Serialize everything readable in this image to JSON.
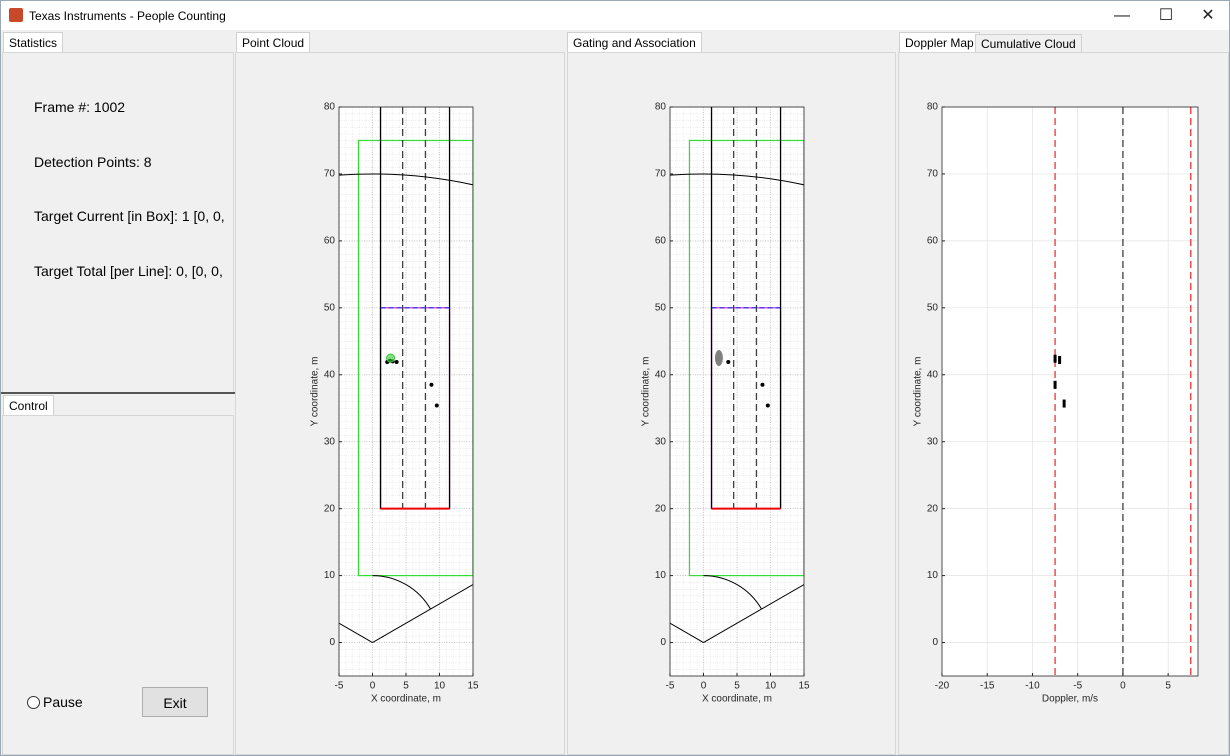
{
  "window": {
    "title": "Texas Instruments - People Counting"
  },
  "statistics": {
    "tab": "Statistics",
    "lines": [
      "Frame #: 1002",
      "Detection Points: 8",
      "Target Current [in Box]: 1 [0, 0,",
      "Target Total [per Line]: 0, [0, 0,"
    ]
  },
  "control": {
    "tab": "Control",
    "pause": "Pause",
    "exit": "Exit"
  },
  "chart_data": [
    {
      "type": "scatter",
      "tabs": [
        "Point Cloud"
      ],
      "xlabel": "X coordinate, m",
      "ylabel": "Y coordinate, m",
      "xlim": [
        -5,
        15
      ],
      "ylim": [
        -5,
        80
      ],
      "xticks": [
        -5,
        0,
        5,
        10,
        15
      ],
      "yticks": [
        0,
        10,
        20,
        30,
        40,
        50,
        60,
        70,
        80
      ],
      "grid": true,
      "minor_grid": true,
      "regions": [
        {
          "xlim": [
            -2.1,
            15
          ],
          "ylim": [
            10,
            75
          ],
          "color": "#33dd33"
        },
        {
          "xlim": [
            1.2,
            11.5
          ],
          "ylim": [
            20,
            50
          ],
          "color": "#cc33cc"
        }
      ],
      "hlines": [
        {
          "y": 20,
          "xlim": [
            1.2,
            11.5
          ],
          "color": "#ee0000",
          "dash": false
        },
        {
          "y": 50,
          "xlim": [
            1.2,
            11.5
          ],
          "color": "#2222ee",
          "dash": true
        }
      ],
      "vlines": [
        {
          "x": 1.2,
          "ylim": [
            20,
            80
          ],
          "color": "#000000",
          "dash": false
        },
        {
          "x": 4.5,
          "ylim": [
            20,
            80
          ],
          "color": "#404040",
          "dash": true
        },
        {
          "x": 7.9,
          "ylim": [
            20,
            80
          ],
          "color": "#404040",
          "dash": true
        },
        {
          "x": 11.5,
          "ylim": [
            20,
            80
          ],
          "color": "#000000",
          "dash": false
        }
      ],
      "arcs": [
        {
          "r": 70,
          "from": 30,
          "to": 150
        },
        {
          "r": 10,
          "from": 30,
          "to": 90
        }
      ],
      "rays": [
        30,
        150
      ],
      "series": [
        {
          "color": "#000000",
          "marker": "dot",
          "x": [
            2.2,
            2.6,
            3.0,
            3.6,
            8.8,
            9.6
          ],
          "values": [
            41.9,
            42.1,
            42.0,
            41.9,
            38.5,
            35.4
          ]
        },
        {
          "color": "#33cc33",
          "marker": "circle",
          "x": [
            2.7
          ],
          "values": [
            42.5
          ]
        }
      ]
    },
    {
      "type": "scatter",
      "tabs": [
        "Gating and Association"
      ],
      "xlabel": "X coordinate, m",
      "ylabel": "Y coordinate, m",
      "xlim": [
        -5,
        15
      ],
      "ylim": [
        -5,
        80
      ],
      "xticks": [
        -5,
        0,
        5,
        10,
        15
      ],
      "yticks": [
        0,
        10,
        20,
        30,
        40,
        50,
        60,
        70,
        80
      ],
      "grid": true,
      "minor_grid": true,
      "regions": [
        {
          "xlim": [
            -2.1,
            15
          ],
          "ylim": [
            10,
            75
          ],
          "color": "#33dd33"
        },
        {
          "xlim": [
            1.2,
            11.5
          ],
          "ylim": [
            20,
            50
          ],
          "color": "#cc33cc"
        }
      ],
      "hlines": [
        {
          "y": 20,
          "xlim": [
            1.2,
            11.5
          ],
          "color": "#ee0000",
          "dash": false
        },
        {
          "y": 50,
          "xlim": [
            1.2,
            11.5
          ],
          "color": "#2222ee",
          "dash": true
        }
      ],
      "vlines": [
        {
          "x": 1.2,
          "ylim": [
            20,
            80
          ],
          "color": "#000000",
          "dash": false
        },
        {
          "x": 4.5,
          "ylim": [
            20,
            80
          ],
          "color": "#404040",
          "dash": true
        },
        {
          "x": 7.9,
          "ylim": [
            20,
            80
          ],
          "color": "#404040",
          "dash": true
        },
        {
          "x": 11.5,
          "ylim": [
            20,
            80
          ],
          "color": "#000000",
          "dash": false
        }
      ],
      "arcs": [
        {
          "r": 70,
          "from": 30,
          "to": 150
        },
        {
          "r": 10,
          "from": 30,
          "to": 90
        }
      ],
      "rays": [
        30,
        150
      ],
      "series": [
        {
          "color": "#000000",
          "marker": "dot",
          "x": [
            3.7,
            8.8,
            9.6
          ],
          "values": [
            41.9,
            38.5,
            35.4
          ]
        },
        {
          "color": "#808080",
          "marker": "ellipse",
          "x": [
            2.3
          ],
          "values": [
            42.5
          ]
        }
      ]
    },
    {
      "type": "scatter",
      "tabs": [
        "Doppler Map",
        "Cumulative Cloud"
      ],
      "xlabel": "Doppler, m/s",
      "ylabel": "Y coordinate, m",
      "xlim": [
        -20,
        8.3
      ],
      "ylim": [
        -5,
        80
      ],
      "xticks": [
        -20,
        -15,
        -10,
        -5,
        0,
        5
      ],
      "yticks": [
        0,
        10,
        20,
        30,
        40,
        50,
        60,
        70,
        80
      ],
      "grid": true,
      "minor_grid": false,
      "vlines": [
        {
          "x": -7.5,
          "color": "#ee3333",
          "dash": true
        },
        {
          "x": 0,
          "color": "#404040",
          "dash": true
        },
        {
          "x": 7.5,
          "color": "#ee3333",
          "dash": true
        }
      ],
      "series": [
        {
          "color": "#000000",
          "marker": "bar",
          "x": [
            -7.5,
            -7.0,
            -7.5,
            -6.5
          ],
          "values": [
            42.4,
            42.2,
            38.5,
            35.7
          ]
        }
      ]
    }
  ]
}
